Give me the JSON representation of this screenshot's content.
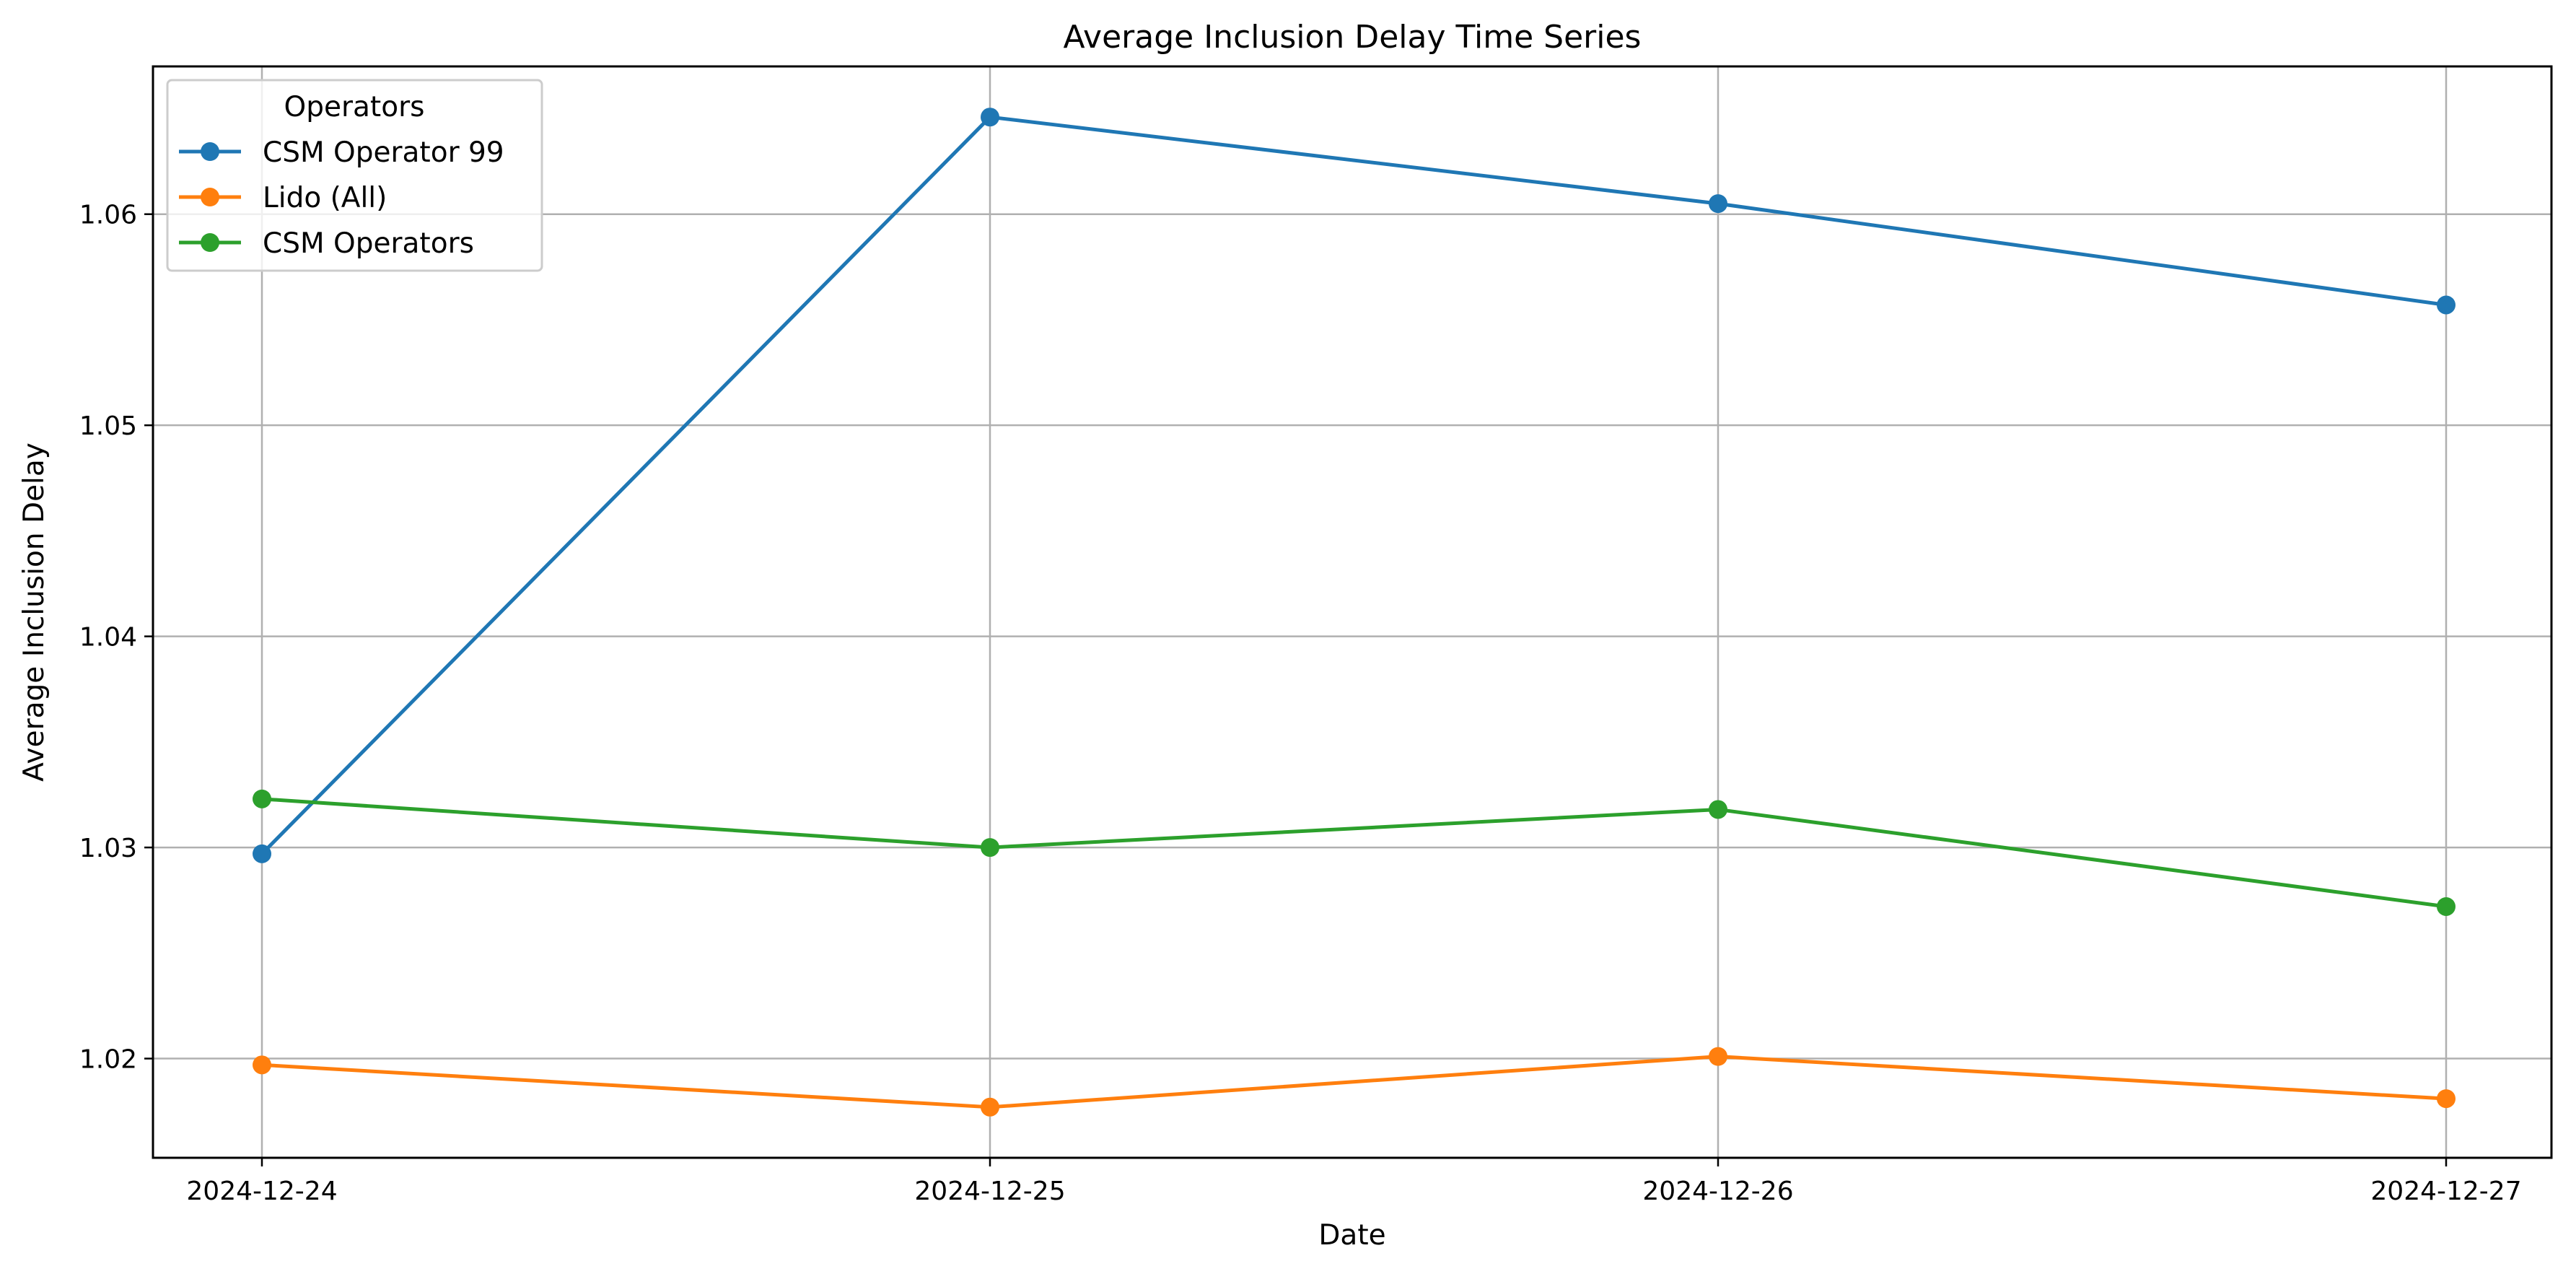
{
  "chart_data": {
    "type": "line",
    "title": "Average Inclusion Delay Time Series",
    "xlabel": "Date",
    "ylabel": "Average Inclusion Delay",
    "categories": [
      "2024-12-24",
      "2024-12-25",
      "2024-12-26",
      "2024-12-27"
    ],
    "ylim": [
      1.0153,
      1.067
    ],
    "yticks": [
      "1.02",
      "1.03",
      "1.04",
      "1.05",
      "1.06"
    ],
    "ytick_values": [
      1.02,
      1.03,
      1.04,
      1.05,
      1.06
    ],
    "grid": true,
    "legend": {
      "title": "Operators",
      "placement": "top-left"
    },
    "series": [
      {
        "name": "CSM Operator 99",
        "color": "#1f77b4",
        "values": [
          1.0297,
          1.0646,
          1.0605,
          1.0557
        ]
      },
      {
        "name": "Lido (All)",
        "color": "#ff7f0e",
        "values": [
          1.0197,
          1.0177,
          1.0201,
          1.0181
        ]
      },
      {
        "name": "CSM Operators",
        "color": "#2ca02c",
        "values": [
          1.0323,
          1.03,
          1.0318,
          1.0272
        ]
      }
    ]
  }
}
